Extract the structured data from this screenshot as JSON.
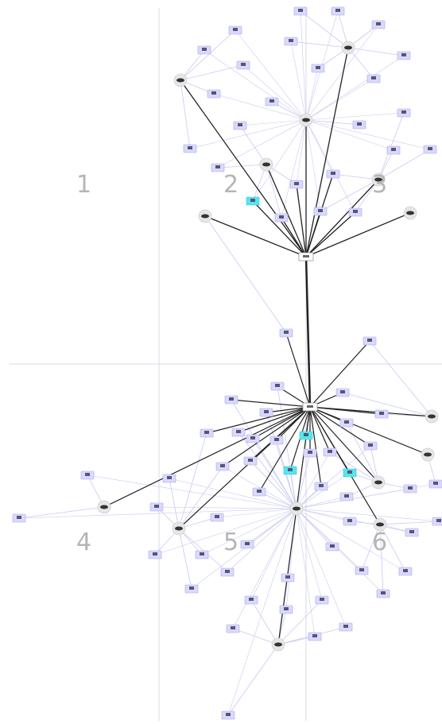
{
  "regions": [
    {
      "id": "r1",
      "label": "1"
    },
    {
      "id": "r2",
      "label": "2"
    },
    {
      "id": "r3",
      "label": "3"
    },
    {
      "id": "r4",
      "label": "4"
    },
    {
      "id": "r5",
      "label": "5"
    },
    {
      "id": "r6",
      "label": "6"
    }
  ],
  "colors": {
    "background": "#ffffff",
    "grid_line": "#d9d9e8",
    "region_label": "#b5b5b5",
    "node_fill": "#d9d9ff",
    "node_border": "#a8a8e0",
    "highlight_node": "#55e6ee",
    "router_fill": "#e6e6e6",
    "strong_edge": "#222222",
    "weak_edge": "#c9c9f0"
  },
  "node_types": {
    "router": "router-icon",
    "host": "host-box",
    "highlighted_host": "highlighted-host-box",
    "hub": "hub-box"
  }
}
